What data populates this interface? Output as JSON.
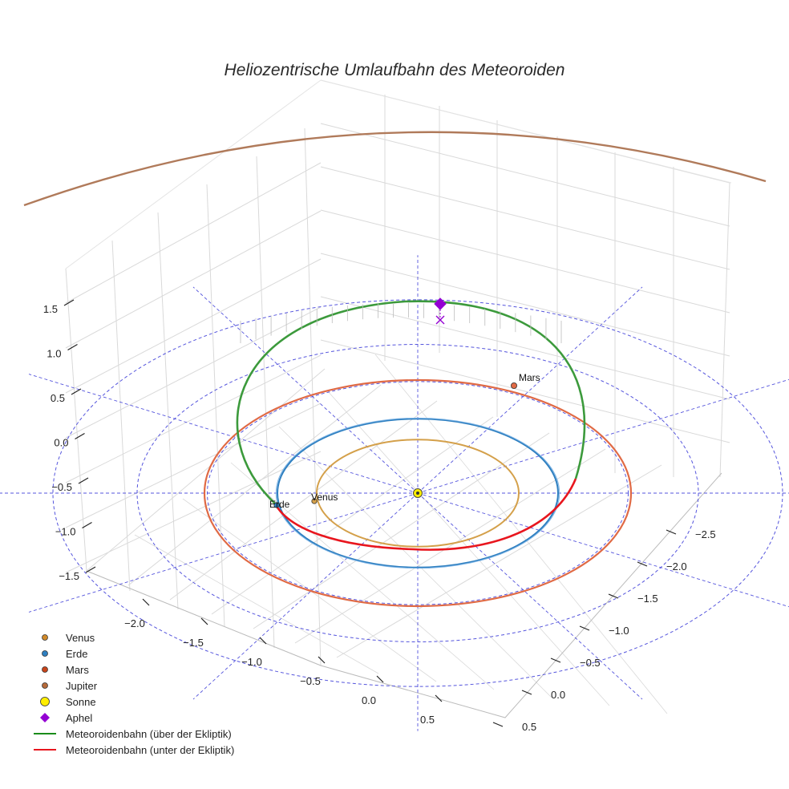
{
  "chart_data": {
    "type": "scatter",
    "title": "Heliozentrische Umlaufbahn des Meteoroiden",
    "projection": "3d",
    "grid": true,
    "legend_position": "bottom-left",
    "z_ticks": [
      "1.5",
      "1.0",
      "0.5",
      "0.0",
      "−0.5",
      "−1.0",
      "−1.5"
    ],
    "x_ticks": [
      "−2.0",
      "−1.5",
      "−1.0",
      "−0.5",
      "0.0",
      "0.5"
    ],
    "y_ticks": [
      "−2.5",
      "−2.0",
      "−1.5",
      "−1.0",
      "−0.5",
      "0.0",
      "0.5"
    ],
    "planet_labels": {
      "venus": "Venus",
      "earth": "Erde",
      "mars": "Mars"
    },
    "legend": [
      {
        "label": "Venus",
        "marker": "circle",
        "color": "#d08a2a"
      },
      {
        "label": "Erde",
        "marker": "circle",
        "color": "#2e7fc0"
      },
      {
        "label": "Mars",
        "marker": "circle",
        "color": "#c8441a"
      },
      {
        "label": "Jupiter",
        "marker": "circle",
        "color": "#b56a3a"
      },
      {
        "label": "Sonne",
        "marker": "circle",
        "color": "#ffee00"
      },
      {
        "label": "Aphel",
        "marker": "diamond",
        "color": "#9400d3"
      },
      {
        "label": "Meteoroidenbahn (über der Ekliptik)",
        "marker": "line",
        "color": "#1a8c1a"
      },
      {
        "label": "Meteoroidenbahn (unter der Ekliptik)",
        "marker": "line",
        "color": "#e8161e"
      }
    ],
    "series": [
      {
        "name": "Venus",
        "orbit_radius_au": 0.72,
        "color": "#d4a04a"
      },
      {
        "name": "Erde",
        "orbit_radius_au": 1.0,
        "color": "#2e7fc0"
      },
      {
        "name": "Mars",
        "orbit_radius_au": 1.52,
        "color": "#e06a45"
      },
      {
        "name": "Jupiter",
        "orbit_radius_au": 5.2,
        "color": "#b07a5a"
      },
      {
        "name": "Meteoroidenbahn",
        "above_color": "#3c9a3c",
        "below_color": "#e8161e"
      }
    ],
    "aphelion": {
      "label": "Aphel",
      "z_approx": 1.5
    },
    "colors": {
      "grid": "#d9d9d9",
      "ecliptic_grid": "#5555dd"
    }
  }
}
